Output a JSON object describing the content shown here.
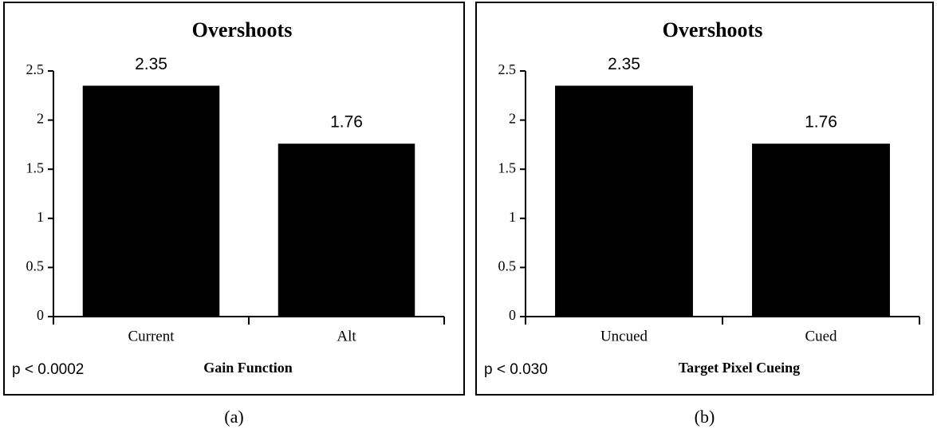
{
  "chart_data": [
    {
      "type": "bar",
      "title": "Overshoots",
      "categories": [
        "Current",
        "Alt"
      ],
      "values": [
        2.35,
        1.76
      ],
      "color": "#000000",
      "ylim": [
        0,
        2.5
      ],
      "yticks": [
        0,
        0.5,
        1,
        1.5,
        2,
        2.5
      ],
      "x_label": "Gain Function",
      "annotation": "p < 0.0002",
      "caption": "(a)"
    },
    {
      "type": "bar",
      "title": "Overshoots",
      "categories": [
        "Uncued",
        "Cued"
      ],
      "values": [
        2.35,
        1.76
      ],
      "color": "#000000",
      "ylim": [
        0,
        2.5
      ],
      "yticks": [
        0,
        0.5,
        1,
        1.5,
        2,
        2.5
      ],
      "x_label": "Target Pixel Cueing",
      "annotation": "p < 0.030",
      "caption": "(b)"
    }
  ]
}
